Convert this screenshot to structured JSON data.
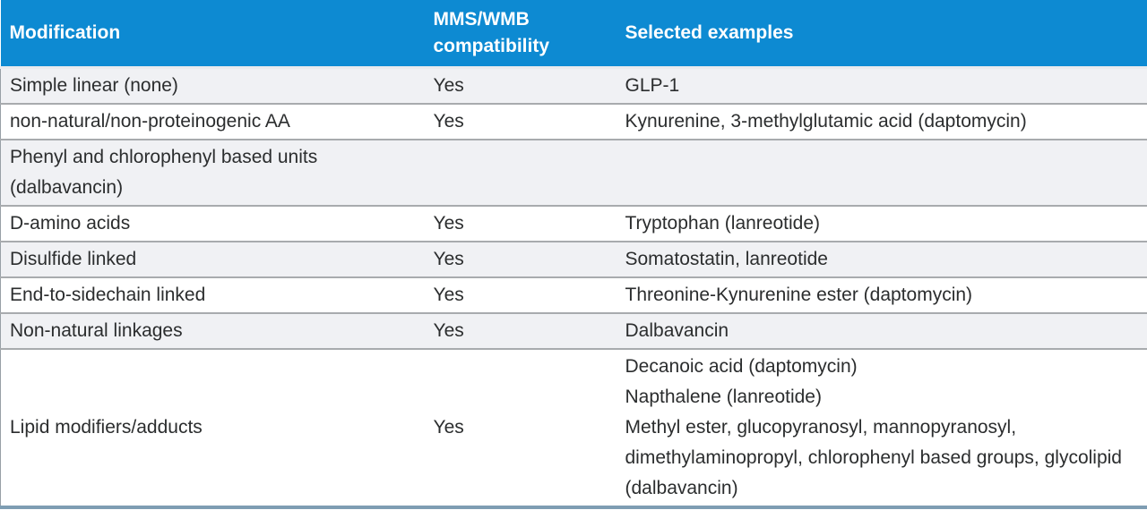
{
  "table": {
    "columns": [
      {
        "label": "Modification"
      },
      {
        "label": "MMS/WMB compatibility"
      },
      {
        "label": "Selected examples"
      }
    ],
    "rows": [
      {
        "modification": "Simple linear (none)",
        "compatibility": "Yes",
        "examples": [
          "GLP-1"
        ]
      },
      {
        "modification": "non-natural/non-proteinogenic AA",
        "compatibility": "Yes",
        "examples": [
          "Kynurenine, 3-methylglutamic acid (daptomycin)"
        ]
      },
      {
        "modification": "Phenyl and chlorophenyl based units (dalbavancin)",
        "compatibility": "",
        "examples": []
      },
      {
        "modification": "D-amino acids",
        "compatibility": "Yes",
        "examples": [
          "Tryptophan (lanreotide)"
        ]
      },
      {
        "modification": "Disulfide linked",
        "compatibility": "Yes",
        "examples": [
          "Somatostatin, lanreotide"
        ]
      },
      {
        "modification": "End-to-sidechain linked",
        "compatibility": "Yes",
        "examples": [
          "Threonine-Kynurenine ester (daptomycin)"
        ]
      },
      {
        "modification": "Non-natural linkages",
        "compatibility": "Yes",
        "examples": [
          "Dalbavancin"
        ]
      },
      {
        "modification": "Lipid modifiers/adducts",
        "compatibility": "Yes",
        "examples": [
          "Decanoic acid (daptomycin)",
          "Napthalene (lanreotide)",
          "Methyl ester, glucopyranosyl, mannopyranosyl, dimethylaminopropyl, chlorophenyl based groups, glycolipid (dalbavancin)"
        ]
      }
    ],
    "colors": {
      "header_bg": "#0d8ad2",
      "header_text": "#ffffff",
      "row_shaded": "#f0f1f4",
      "row_plain": "#ffffff",
      "separator": "#a8abae",
      "bottom_band": "#7e9db3",
      "body_text": "#2b2d2e"
    }
  }
}
